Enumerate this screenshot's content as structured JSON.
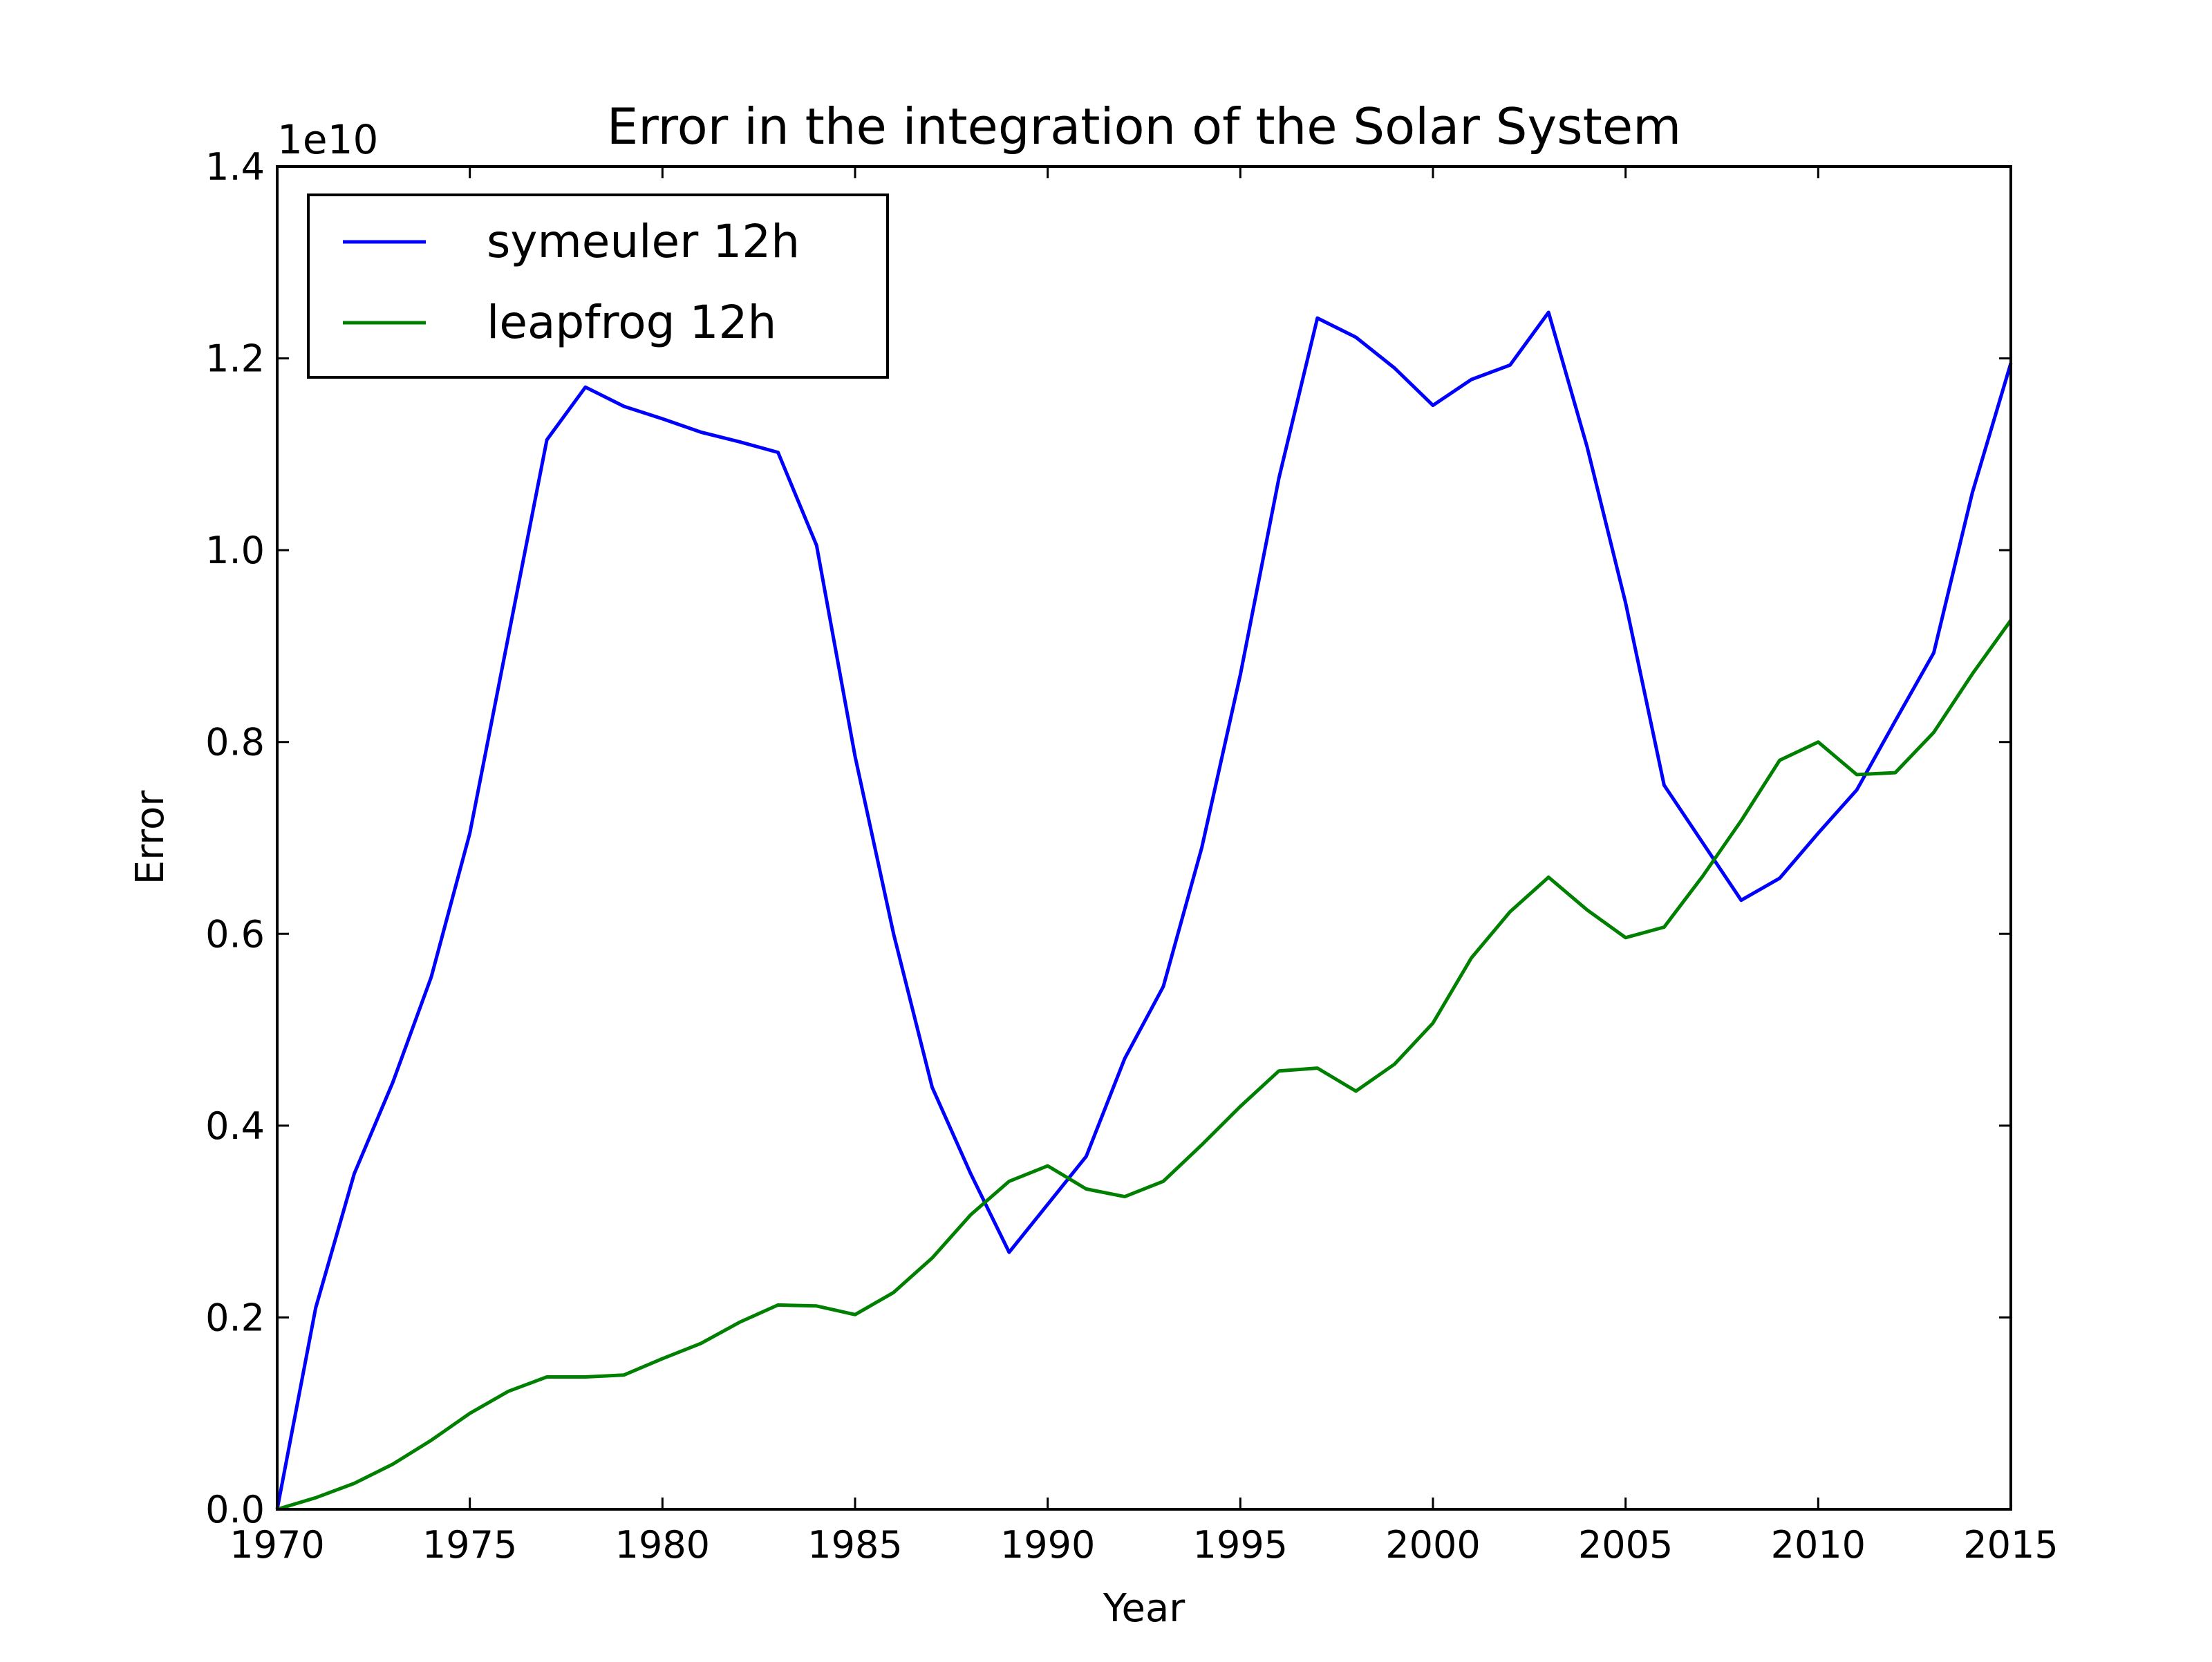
{
  "chart_data": {
    "type": "line",
    "title": "Error in the integration of the Solar System",
    "xlabel": "Year",
    "ylabel": "Error",
    "y_offset_label": "1e10",
    "xlim": [
      1970,
      2015
    ],
    "ylim": [
      0.0,
      1.4
    ],
    "x_ticks": [
      1970,
      1975,
      1980,
      1985,
      1990,
      1995,
      2000,
      2005,
      2010,
      2015
    ],
    "y_ticks": [
      0.0,
      0.2,
      0.4,
      0.6,
      0.8,
      1.0,
      1.2,
      1.4
    ],
    "x_tick_labels": [
      "1970",
      "1975",
      "1980",
      "1985",
      "1990",
      "1995",
      "2000",
      "2005",
      "2010",
      "2015"
    ],
    "y_tick_labels": [
      "0.0",
      "0.2",
      "0.4",
      "0.6",
      "0.8",
      "1.0",
      "1.2",
      "1.4"
    ],
    "grid": false,
    "legend_position": "top-left",
    "x": [
      1970,
      1971,
      1972,
      1973,
      1974,
      1975,
      1976,
      1977,
      1978,
      1979,
      1980,
      1981,
      1982,
      1983,
      1984,
      1985,
      1986,
      1987,
      1988,
      1989,
      1990,
      1991,
      1992,
      1993,
      1994,
      1995,
      1996,
      1997,
      1998,
      1999,
      2000,
      2001,
      2002,
      2003,
      2004,
      2005,
      2006,
      2007,
      2008,
      2009,
      2010,
      2011,
      2012,
      2013,
      2014,
      2015
    ],
    "series": [
      {
        "name": "symeuler 12h",
        "color": "#0000ff",
        "values": [
          0.0,
          0.21,
          0.35,
          0.445,
          0.555,
          0.705,
          0.91,
          1.115,
          1.17,
          1.15,
          1.137,
          1.123,
          1.113,
          1.102,
          1.005,
          0.785,
          0.6,
          0.44,
          0.35,
          0.268,
          0.318,
          0.368,
          0.47,
          0.545,
          0.69,
          0.87,
          1.075,
          1.242,
          1.222,
          1.19,
          1.151,
          1.178,
          1.193,
          1.248,
          1.108,
          0.945,
          0.755,
          0.695,
          0.635,
          0.658,
          0.705,
          0.75,
          0.822,
          0.893,
          1.06,
          1.195
        ]
      },
      {
        "name": "leapfrog 12h",
        "color": "#008000",
        "values": [
          0.0,
          0.012,
          0.027,
          0.047,
          0.072,
          0.1,
          0.123,
          0.138,
          0.138,
          0.14,
          0.157,
          0.173,
          0.195,
          0.213,
          0.212,
          0.203,
          0.226,
          0.262,
          0.307,
          0.342,
          0.358,
          0.334,
          0.326,
          0.342,
          0.38,
          0.42,
          0.457,
          0.46,
          0.436,
          0.464,
          0.507,
          0.575,
          0.623,
          0.659,
          0.625,
          0.596,
          0.607,
          0.66,
          0.718,
          0.781,
          0.8,
          0.766,
          0.768,
          0.81,
          0.871,
          0.927
        ]
      }
    ]
  }
}
